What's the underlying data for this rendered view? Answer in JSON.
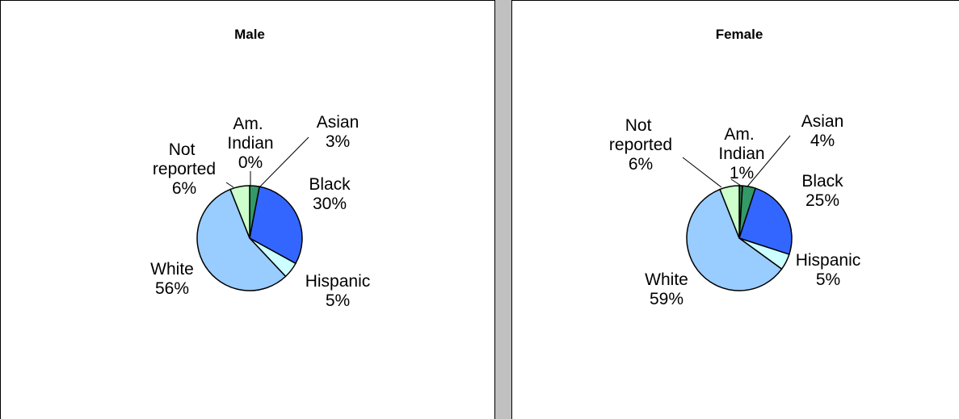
{
  "chart_data": [
    {
      "type": "pie",
      "title": "Male",
      "categories": [
        "Am. Indian",
        "Asian",
        "Black",
        "Hispanic",
        "White",
        "Not reported"
      ],
      "values": [
        0,
        3,
        30,
        5,
        56,
        6
      ],
      "value_labels": [
        "0%",
        "3%",
        "30%",
        "5%",
        "56%",
        "6%"
      ],
      "colors": [
        "#2e7d4f",
        "#339966",
        "#3366ff",
        "#ccffff",
        "#99ccff",
        "#ccffcc"
      ]
    },
    {
      "type": "pie",
      "title": "Female",
      "categories": [
        "Am. Indian",
        "Asian",
        "Black",
        "Hispanic",
        "White",
        "Not reported"
      ],
      "values": [
        1,
        4,
        25,
        5,
        59,
        6
      ],
      "value_labels": [
        "1%",
        "4%",
        "25%",
        "5%",
        "59%",
        "6%"
      ],
      "colors": [
        "#2e7d4f",
        "#339966",
        "#3366ff",
        "#ccffff",
        "#99ccff",
        "#ccffcc"
      ]
    }
  ]
}
